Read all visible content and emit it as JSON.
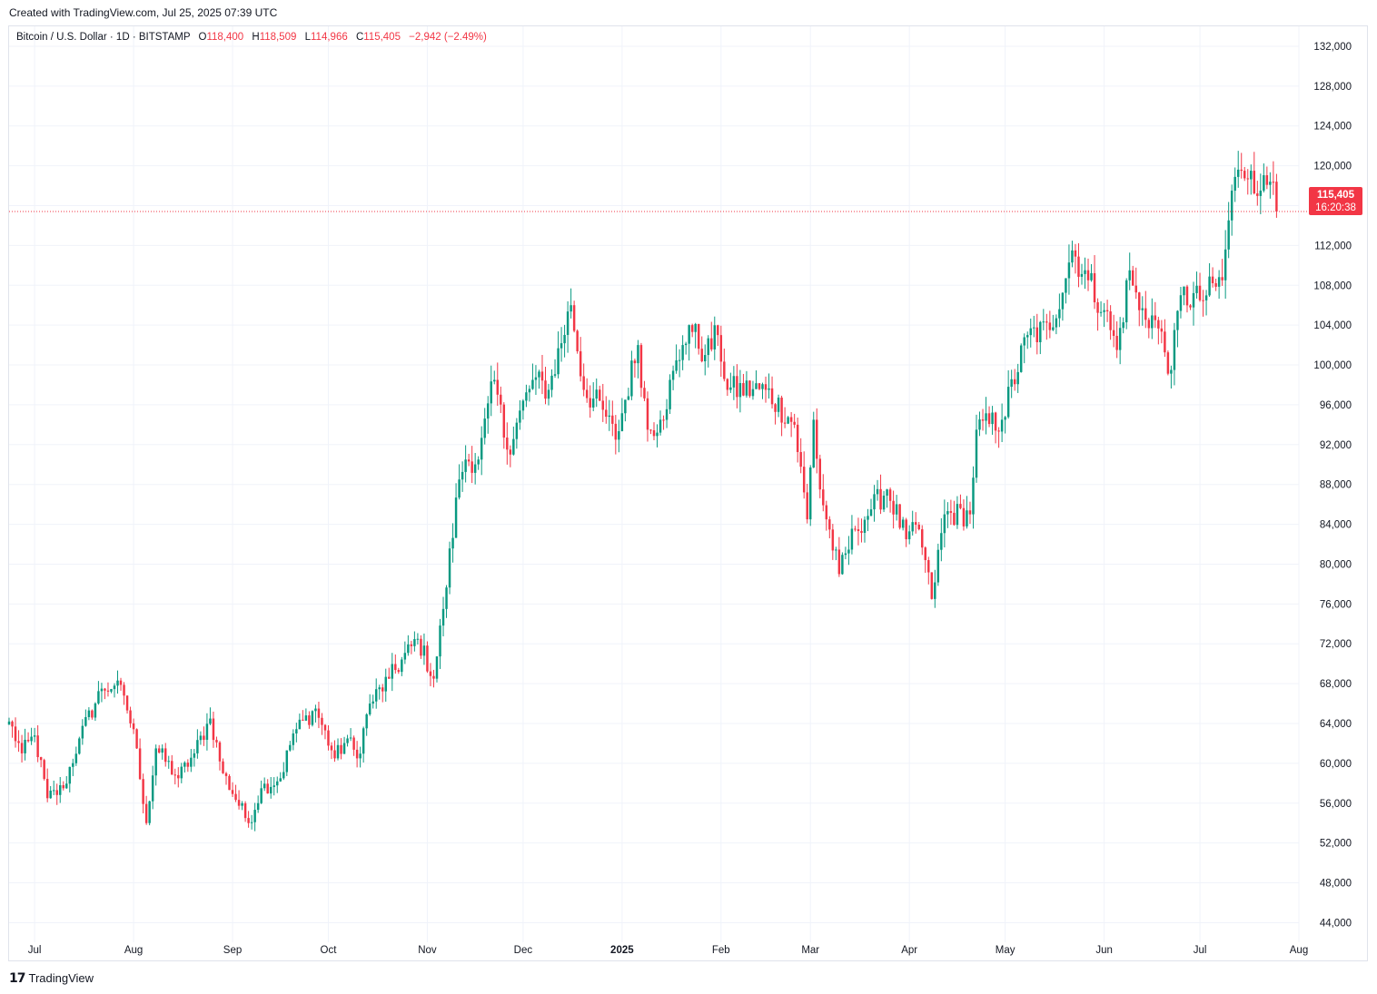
{
  "header": {
    "credit": "Created with TradingView.com, Jul 25, 2025 07:39 UTC"
  },
  "legend": {
    "symbol": "Bitcoin / U.S. Dollar · 1D · BITSTAMP",
    "open_label": "O",
    "open": "118,400",
    "high_label": "H",
    "high": "118,509",
    "low_label": "L",
    "low": "114,966",
    "close_label": "C",
    "close": "115,405",
    "change": "−2,942 (−2.49%)"
  },
  "last_price": {
    "value": "115,405",
    "countdown": "16:20:38"
  },
  "footer": {
    "brand": "TradingView"
  },
  "colors": {
    "up": "#089981",
    "down": "#f23645",
    "grid": "#f0f3fa",
    "text": "#131722"
  },
  "chart_data": {
    "type": "candlestick",
    "series_name": "Bitcoin / U.S. Dollar",
    "interval": "1D",
    "x_ticks": [
      "Jul",
      "Aug",
      "Sep",
      "Oct",
      "Nov",
      "Dec",
      "2025",
      "Feb",
      "Mar",
      "Apr",
      "May",
      "Jun",
      "Jul",
      "Aug"
    ],
    "x_tick_dates": [
      "2024-07-01",
      "2024-08-01",
      "2024-09-01",
      "2024-10-01",
      "2024-11-01",
      "2024-12-01",
      "2025-01-01",
      "2025-02-01",
      "2025-03-01",
      "2025-04-01",
      "2025-05-01",
      "2025-06-01",
      "2025-07-01",
      "2025-08-01"
    ],
    "y_ticks": [
      44000,
      48000,
      52000,
      56000,
      60000,
      64000,
      68000,
      72000,
      76000,
      80000,
      84000,
      88000,
      92000,
      96000,
      100000,
      104000,
      108000,
      112000,
      116000,
      120000,
      124000,
      128000,
      132000
    ],
    "y_tick_labels": [
      "44,000",
      "48,000",
      "52,000",
      "56,000",
      "60,000",
      "64,000",
      "68,000",
      "72,000",
      "76,000",
      "80,000",
      "84,000",
      "88,000",
      "92,000",
      "96,000",
      "100,000",
      "104,000",
      "108,000",
      "112,000",
      "116,000",
      "120,000",
      "124,000",
      "128,000",
      "132,000"
    ],
    "ylim": [
      42400,
      134000
    ],
    "xlim": [
      "2024-06-23",
      "2025-08-01"
    ],
    "last_close": 115405,
    "close_anchors": [
      [
        "2024-06-23",
        64200
      ],
      [
        "2024-06-27",
        61000
      ],
      [
        "2024-07-01",
        62800
      ],
      [
        "2024-07-05",
        56500
      ],
      [
        "2024-07-10",
        57500
      ],
      [
        "2024-07-15",
        62500
      ],
      [
        "2024-07-22",
        67500
      ],
      [
        "2024-07-26",
        67800
      ],
      [
        "2024-07-29",
        66800
      ],
      [
        "2024-08-02",
        61500
      ],
      [
        "2024-08-05",
        54000
      ],
      [
        "2024-08-08",
        61500
      ],
      [
        "2024-08-15",
        58500
      ],
      [
        "2024-08-20",
        61000
      ],
      [
        "2024-08-25",
        64500
      ],
      [
        "2024-08-29",
        59000
      ],
      [
        "2024-09-06",
        54000
      ],
      [
        "2024-09-10",
        57500
      ],
      [
        "2024-09-16",
        58500
      ],
      [
        "2024-09-20",
        63000
      ],
      [
        "2024-09-27",
        65500
      ],
      [
        "2024-10-03",
        60500
      ],
      [
        "2024-10-07",
        62500
      ],
      [
        "2024-10-10",
        60500
      ],
      [
        "2024-10-14",
        66000
      ],
      [
        "2024-10-20",
        68500
      ],
      [
        "2024-10-29",
        72500
      ],
      [
        "2024-11-03",
        68500
      ],
      [
        "2024-11-06",
        75500
      ],
      [
        "2024-11-11",
        88500
      ],
      [
        "2024-11-13",
        90500
      ],
      [
        "2024-11-17",
        90500
      ],
      [
        "2024-11-22",
        98500
      ],
      [
        "2024-11-26",
        91500
      ],
      [
        "2024-12-04",
        98500
      ],
      [
        "2024-12-09",
        97500
      ],
      [
        "2024-12-16",
        106000
      ],
      [
        "2024-12-20",
        97500
      ],
      [
        "2024-12-26",
        95500
      ],
      [
        "2024-12-30",
        92500
      ],
      [
        "2025-01-06",
        102000
      ],
      [
        "2025-01-09",
        93500
      ],
      [
        "2025-01-13",
        94500
      ],
      [
        "2025-01-20",
        102000
      ],
      [
        "2025-01-22",
        104000
      ],
      [
        "2025-01-27",
        101000
      ],
      [
        "2025-01-31",
        103000
      ],
      [
        "2025-02-03",
        97500
      ],
      [
        "2025-02-15",
        97500
      ],
      [
        "2025-02-24",
        94000
      ],
      [
        "2025-02-28",
        84500
      ],
      [
        "2025-03-02",
        94500
      ],
      [
        "2025-03-04",
        87500
      ],
      [
        "2025-03-10",
        79000
      ],
      [
        "2025-03-15",
        83500
      ],
      [
        "2025-03-20",
        85500
      ],
      [
        "2025-03-25",
        87500
      ],
      [
        "2025-03-31",
        82500
      ],
      [
        "2025-04-04",
        83500
      ],
      [
        "2025-04-08",
        76500
      ],
      [
        "2025-04-12",
        85000
      ],
      [
        "2025-04-20",
        85000
      ],
      [
        "2025-04-22",
        93500
      ],
      [
        "2025-04-30",
        94500
      ],
      [
        "2025-05-08",
        103000
      ],
      [
        "2025-05-15",
        103500
      ],
      [
        "2025-05-22",
        111500
      ],
      [
        "2025-05-27",
        108500
      ],
      [
        "2025-06-01",
        105500
      ],
      [
        "2025-06-05",
        101500
      ],
      [
        "2025-06-09",
        109500
      ],
      [
        "2025-06-12",
        105500
      ],
      [
        "2025-06-17",
        104500
      ],
      [
        "2025-06-22",
        99500
      ],
      [
        "2025-06-25",
        107000
      ],
      [
        "2025-07-01",
        106500
      ],
      [
        "2025-07-08",
        108500
      ],
      [
        "2025-07-11",
        117500
      ],
      [
        "2025-07-14",
        119500
      ],
      [
        "2025-07-17",
        119500
      ],
      [
        "2025-07-20",
        117500
      ],
      [
        "2025-07-23",
        118400
      ],
      [
        "2025-07-24",
        118300
      ],
      [
        "2025-07-25",
        115405
      ]
    ]
  }
}
